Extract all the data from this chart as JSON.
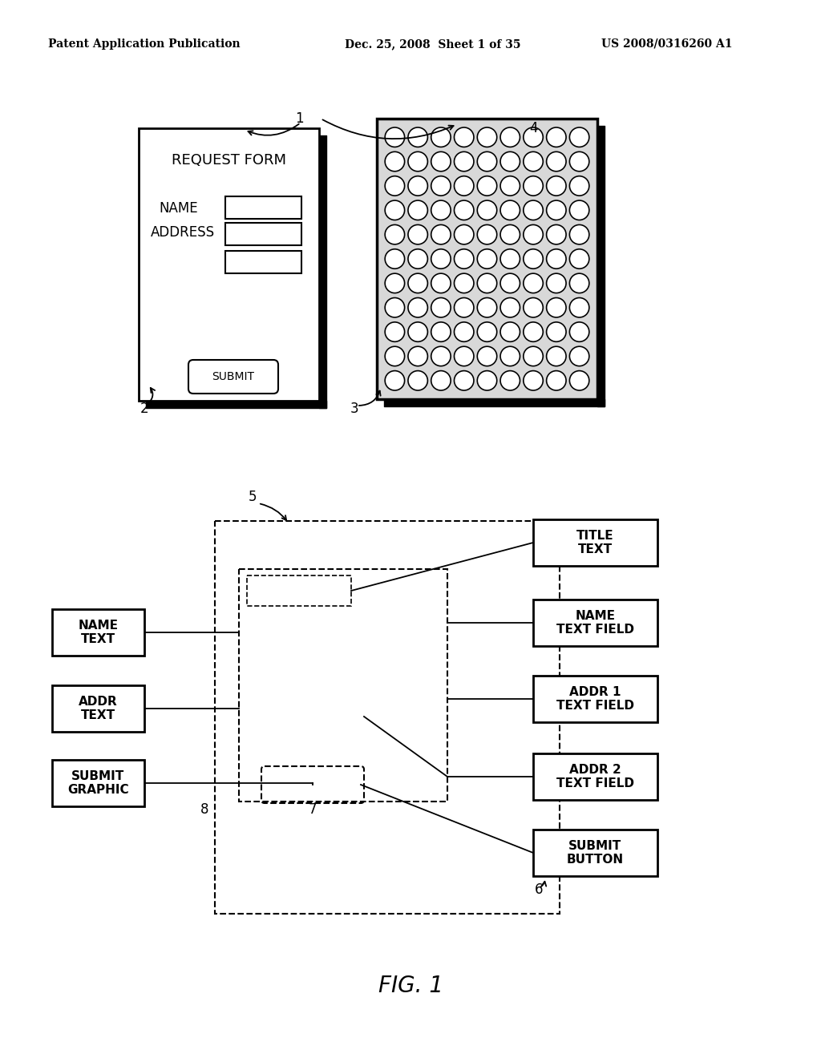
{
  "bg_color": "#ffffff",
  "header_left": "Patent Application Publication",
  "header_mid": "Dec. 25, 2008  Sheet 1 of 35",
  "header_right": "US 2008/0316260 A1",
  "fig_label": "FIG. 1",
  "top_diagram": {
    "form_label": "REQUEST FORM",
    "submit_label": "SUBMIT",
    "label1": "1",
    "label2": "2",
    "label3": "3",
    "label4": "4"
  },
  "bottom_diagram": {
    "left_boxes": [
      {
        "label": "NAME\nTEXT"
      },
      {
        "label": "ADDR\nTEXT"
      },
      {
        "label": "SUBMIT\nGRAPHIC"
      }
    ],
    "right_boxes": [
      {
        "label": "TITLE\nTEXT"
      },
      {
        "label": "NAME\nTEXT FIELD"
      },
      {
        "label": "ADDR 1\nTEXT FIELD"
      },
      {
        "label": "ADDR 2\nTEXT FIELD"
      },
      {
        "label": "SUBMIT\nBUTTON"
      }
    ],
    "label5": "5",
    "label6": "6",
    "label7": "7",
    "label8": "8"
  }
}
